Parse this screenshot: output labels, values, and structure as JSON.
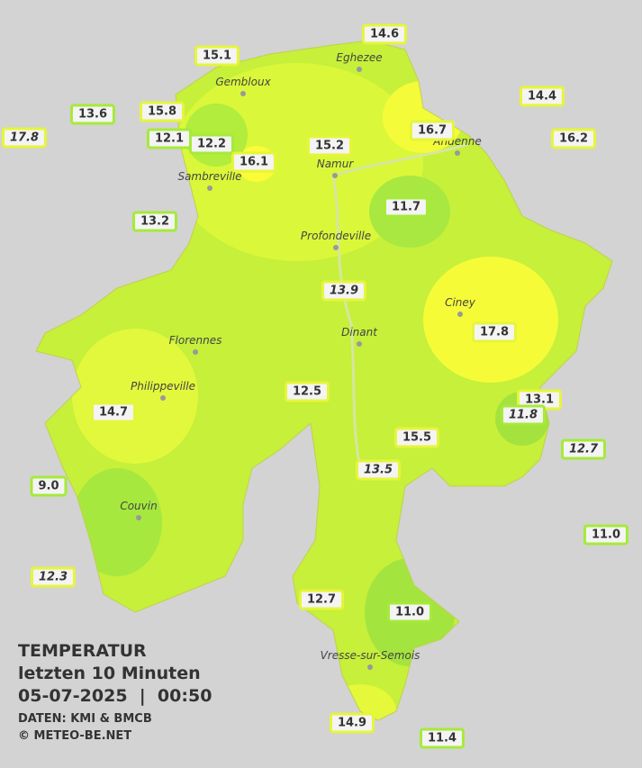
{
  "title": {
    "line1": "TEMPERATUR",
    "line2": "letzten 10 Minuten",
    "line3": "05-07-2025  |  00:50",
    "source": "DATEN: KMI & BMCB",
    "copyright": "© METEO-BE.NET"
  },
  "towns": [
    "Eghezee",
    "Gembloux",
    "Andenne",
    "Namur",
    "Sambreville",
    "Profondeville",
    "Ciney",
    "Florennes",
    "Dinant",
    "Philippeville",
    "Couvin",
    "Vresse-sur-Semois"
  ],
  "stations": [
    "14.6",
    "15.1",
    "14.4",
    "13.6",
    "15.8",
    "17.8",
    "12.1",
    "12.2",
    "16.1",
    "15.2",
    "16.7",
    "16.2",
    "11.7",
    "13.2",
    "13.9",
    "17.8",
    "12.5",
    "13.1",
    "11.8",
    "14.7",
    "15.5",
    "12.7",
    "13.5",
    "9.0",
    "11.0",
    "12.3",
    "12.7",
    "11.0",
    "14.9",
    "11.4"
  ]
}
